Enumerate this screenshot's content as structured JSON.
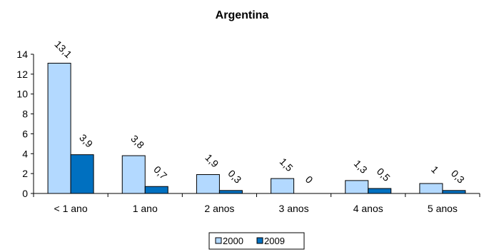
{
  "chart_data": {
    "type": "bar",
    "title": "Argentina",
    "xlabel": "",
    "ylabel": "",
    "categories": [
      "< 1 ano",
      "1 ano",
      "2 anos",
      "3 anos",
      "4 anos",
      "5 anos"
    ],
    "series": [
      {
        "name": "2000",
        "values": [
          13.1,
          3.8,
          1.9,
          1.5,
          1.3,
          1
        ],
        "labels": [
          "13,1",
          "3,8",
          "1,9",
          "1,5",
          "1,3",
          "1"
        ],
        "color": "#b3d9ff"
      },
      {
        "name": "2009",
        "values": [
          3.9,
          0.7,
          0.3,
          0,
          0.5,
          0.3
        ],
        "labels": [
          "3,9",
          "0,7",
          "0,3",
          "0",
          "0,5",
          "0,3"
        ],
        "color": "#0070c0"
      }
    ],
    "ylim": [
      0,
      14
    ],
    "yticks": [
      0,
      2,
      4,
      6,
      8,
      10,
      12,
      14
    ],
    "grid": false,
    "legend": "bottom"
  }
}
